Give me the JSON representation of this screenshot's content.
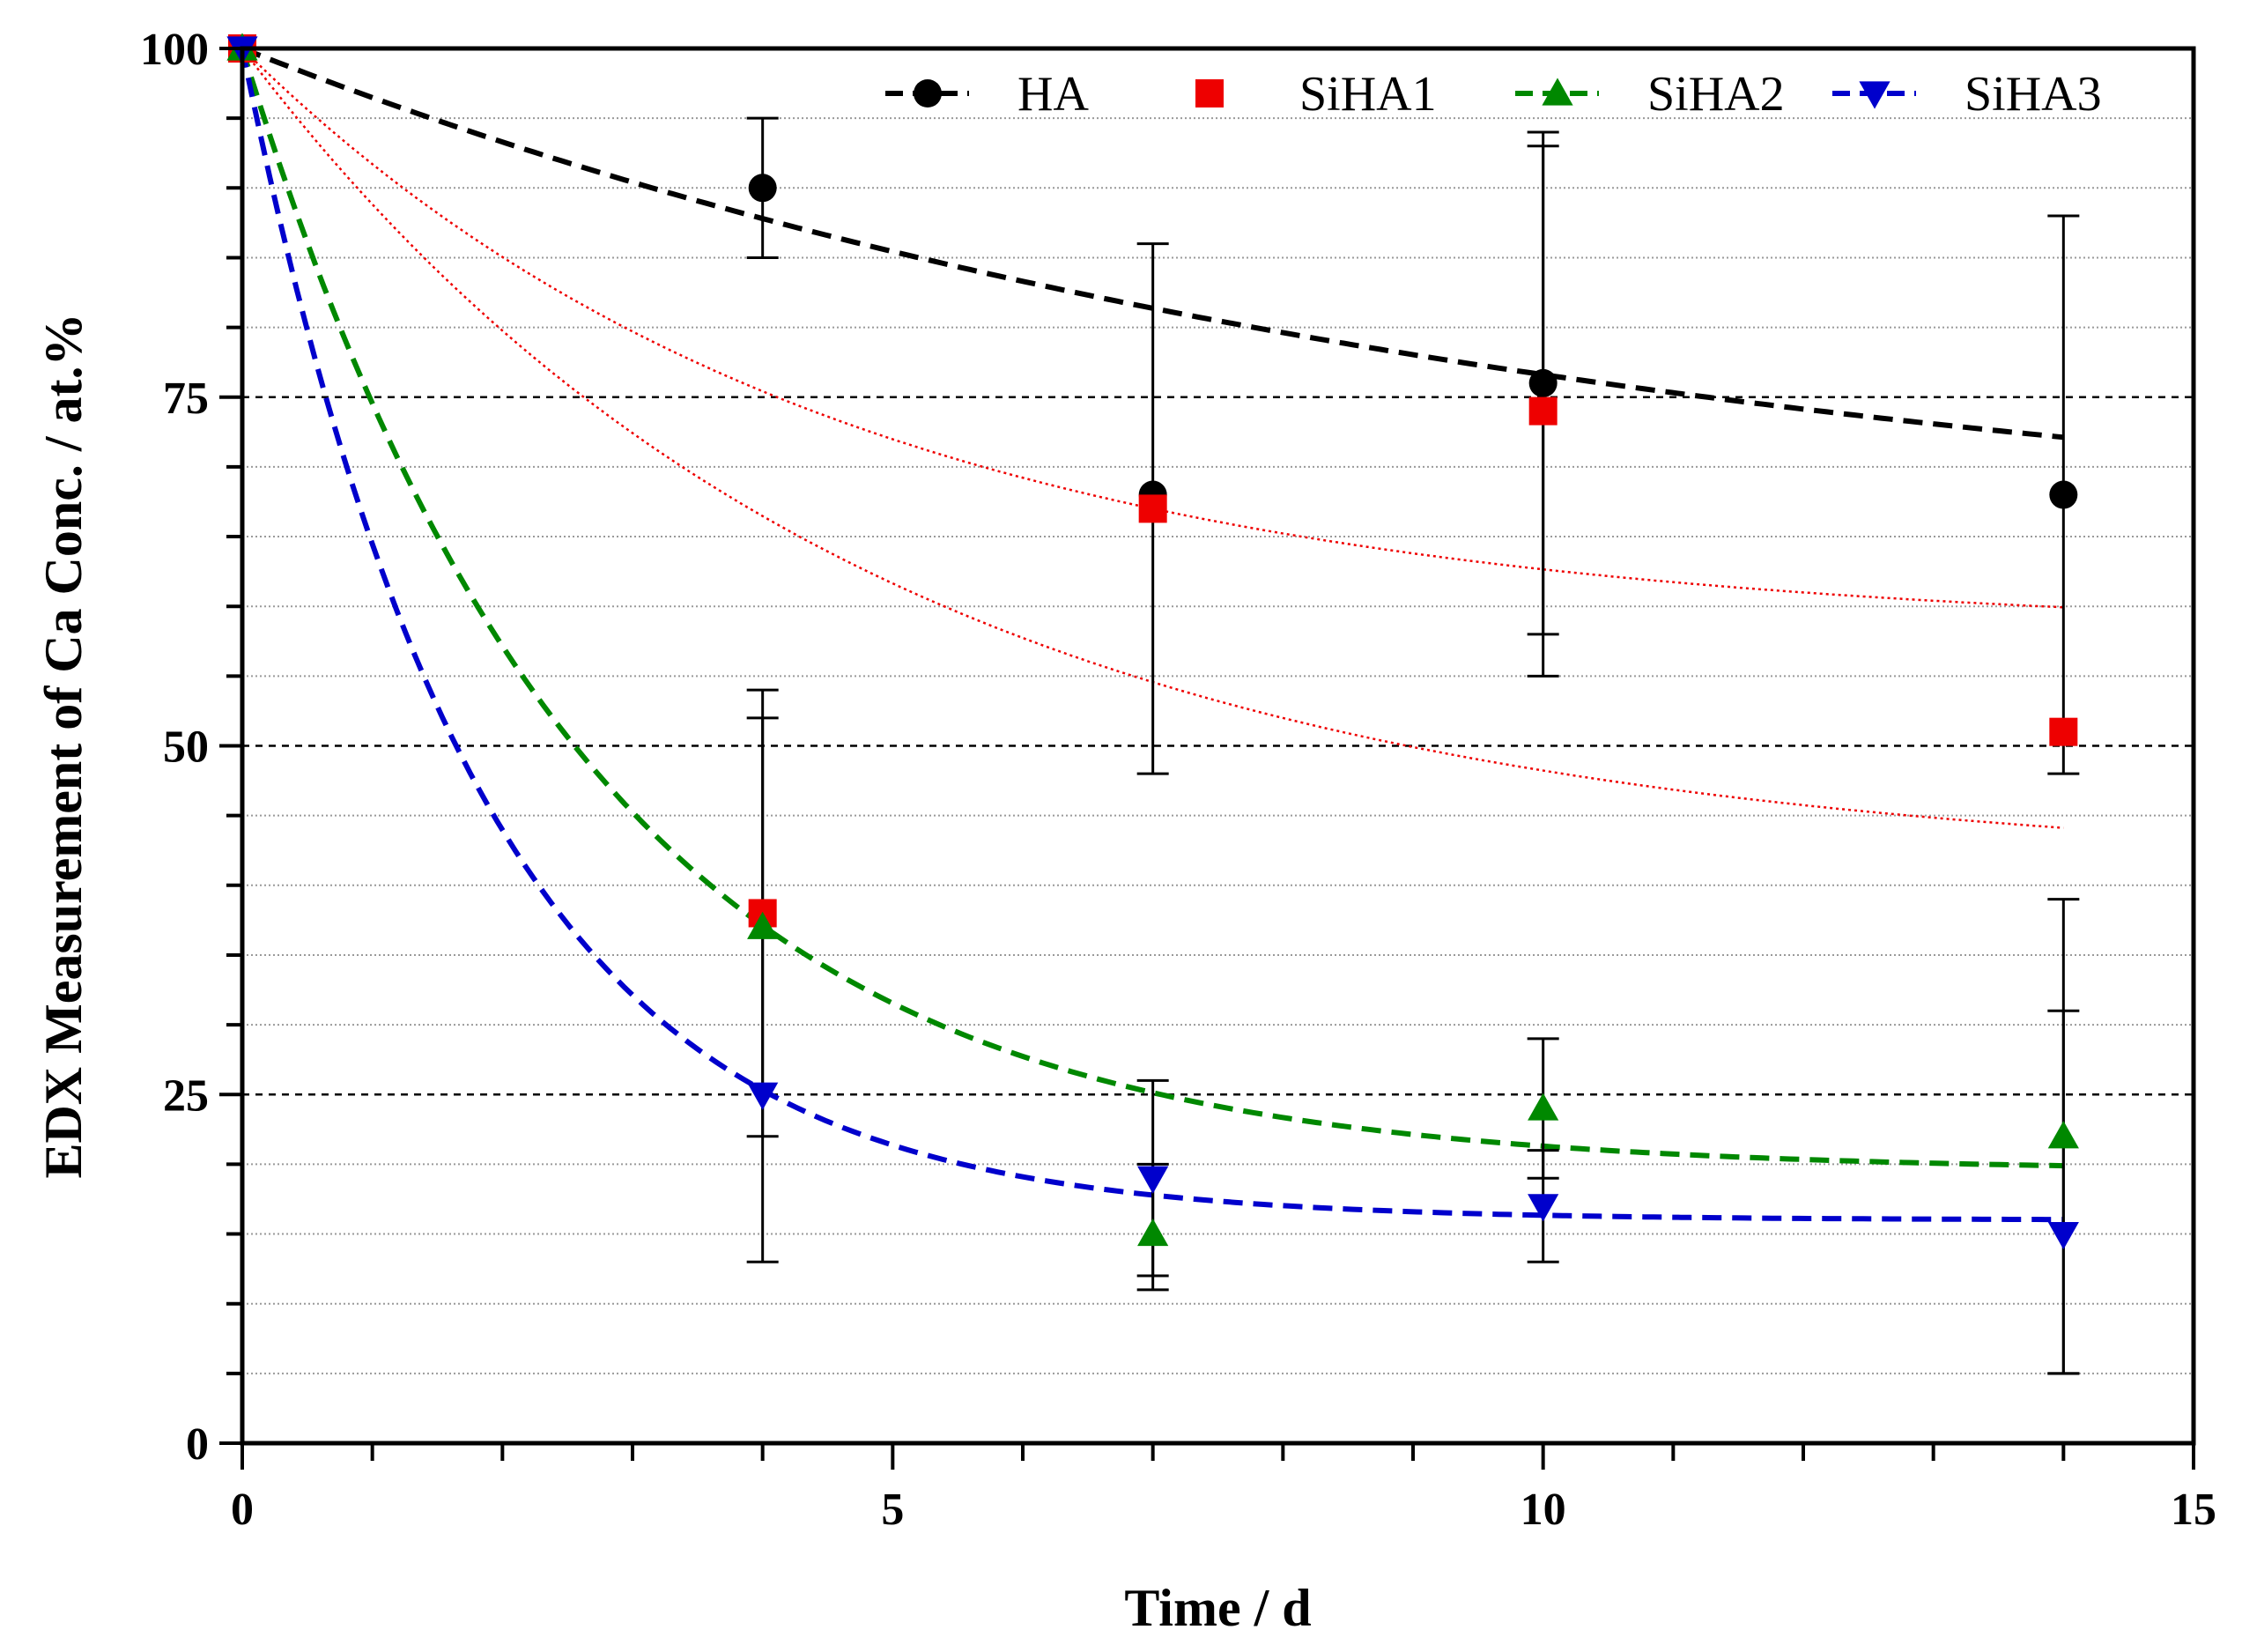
{
  "chart_data": {
    "type": "scatter",
    "title": "",
    "xlabel": "Time / d",
    "ylabel": "EDX Measurement of Ca Conc. / at.%",
    "xlim": [
      0,
      15
    ],
    "ylim": [
      0,
      100
    ],
    "xticks": [
      "0",
      "5",
      "10",
      "15"
    ],
    "yticks": [
      "0",
      "25",
      "50",
      "75",
      "100"
    ],
    "x_minor_step": 1,
    "y_minor_step": 5,
    "major_gridlines_y": [
      25,
      50,
      75
    ],
    "legend_position": "top-right",
    "x": [
      0,
      4,
      7,
      10,
      14
    ],
    "series": [
      {
        "name": "HA",
        "color": "#000000",
        "marker": "circle",
        "values": [
          100,
          90,
          68,
          76,
          68
        ],
        "error_low": [
          null,
          85,
          48,
          58,
          48
        ],
        "error_high": [
          null,
          95,
          86,
          94,
          88
        ],
        "fit": {
          "style": "dashed",
          "plateau": 63,
          "k": 0.1,
          "x_end": 14
        }
      },
      {
        "name": "SiHA1",
        "color": "#ee0000",
        "marker": "square",
        "values": [
          100,
          38,
          67,
          74,
          51
        ],
        "error_low": [
          null,
          null,
          null,
          55,
          null
        ],
        "error_high": [
          null,
          null,
          null,
          93,
          null
        ],
        "fit_band": [
          {
            "style": "dotted",
            "plateau": 58,
            "k": 0.22,
            "x_end": 14
          },
          {
            "style": "dotted",
            "plateau": 41,
            "k": 0.21,
            "x_end": 14
          }
        ]
      },
      {
        "name": "SiHA2",
        "color": "#008800",
        "marker": "triangle-up",
        "values": [
          100,
          37,
          15,
          24,
          22
        ],
        "error_low": [
          null,
          22,
          11,
          19,
          5
        ],
        "error_high": [
          null,
          52,
          26,
          29,
          39
        ],
        "fit": {
          "style": "dashed",
          "plateau": 19.5,
          "k": 0.38,
          "x_end": 14
        }
      },
      {
        "name": "SiHA3",
        "color": "#0000cc",
        "marker": "triangle-down",
        "values": [
          100,
          25,
          19,
          17,
          15
        ],
        "error_low": [
          null,
          13,
          12,
          13,
          5
        ],
        "error_high": [
          null,
          54,
          20,
          21,
          31
        ],
        "fit": {
          "style": "dashed",
          "plateau": 16,
          "k": 0.55,
          "x_end": 14
        }
      }
    ]
  }
}
